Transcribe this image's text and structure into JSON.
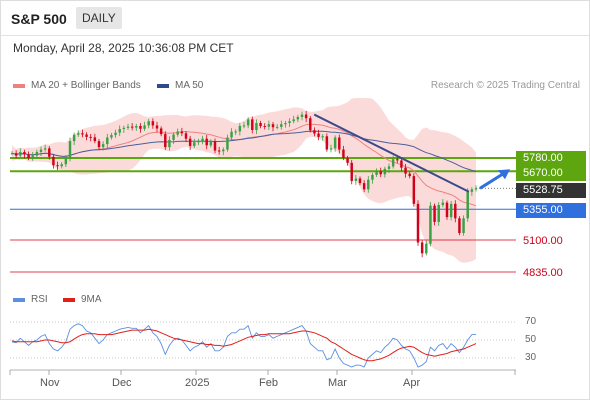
{
  "header": {
    "symbol": "S&P 500",
    "timeframe": "DAILY",
    "datetime": "Monday, April 28, 2025 10:36:08 PM CET",
    "credit": "Research © 2025 Trading Central"
  },
  "legend_main": [
    {
      "label": "MA 20 + Bollinger Bands",
      "color": "#f08080"
    },
    {
      "label": "MA 50",
      "color": "#2c4a8c"
    }
  ],
  "legend_rsi": [
    {
      "label": "RSI",
      "color": "#5b8fe0"
    },
    {
      "label": "9MA",
      "color": "#e0201b"
    }
  ],
  "levels": {
    "r2": {
      "price": 5780.0,
      "text": "5780.00",
      "color": "#5ea60f",
      "style": "filled"
    },
    "r1": {
      "price": 5670.0,
      "text": "5670.00",
      "color": "#5ea60f",
      "style": "filled"
    },
    "last": {
      "price": 5528.75,
      "text": "5528.75",
      "color": "#333333",
      "style": "filled"
    },
    "pivot": {
      "price": 5355.0,
      "text": "5355.00",
      "color": "#2f6fde",
      "style": "filled"
    },
    "s1": {
      "price": 5100.0,
      "text": "5100.00",
      "color": "#d0021b",
      "style": "plain"
    },
    "s2": {
      "price": 4835.0,
      "text": "4835.00",
      "color": "#d0021b",
      "style": "plain"
    }
  },
  "rsi_ticks": [
    "70",
    "50",
    "30"
  ],
  "months": [
    "Nov",
    "Dec",
    "2025",
    "Feb",
    "Mar",
    "Apr"
  ],
  "chart_data": [
    {
      "type": "candlestick",
      "title": "S&P 500",
      "timeframe": "daily",
      "x_range": [
        "2024-10-15",
        "2025-04-28"
      ],
      "y_range_approx": [
        4800,
        6150
      ],
      "last_price": 5528.75,
      "horizontal_levels": [
        5780.0,
        5670.0,
        5528.75,
        5355.0,
        5100.0,
        4835.0
      ],
      "trendline": {
        "from": [
          "2025-02-19",
          6140
        ],
        "to": [
          "2025-04-25",
          5500
        ]
      },
      "target_arrow": {
        "from": [
          "2025-04-28",
          5528.75
        ],
        "to": [
          "2025-05-05",
          5720
        ]
      },
      "indicators": [
        "MA 20 + Bollinger Bands",
        "MA 50"
      ],
      "closes_approx": [
        5820,
        5800,
        5830,
        5810,
        5780,
        5800,
        5830,
        5850,
        5860,
        5790,
        5720,
        5712,
        5728,
        5780,
        5920,
        5973,
        5985,
        5975,
        5955,
        5951,
        5920,
        5870,
        5895,
        5950,
        5970,
        5990,
        6020,
        6030,
        6040,
        6032,
        6045,
        6022,
        6050,
        6085,
        6050,
        6025,
        5978,
        5870,
        5930,
        5974,
        6000,
        5985,
        5940,
        5880,
        5910,
        5922,
        5940,
        5885,
        5918,
        5842,
        5836,
        5850,
        5950,
        5998,
        6000,
        6045,
        6050,
        6100,
        6012,
        6070,
        6045,
        6040,
        6060,
        6035,
        6038,
        6060,
        6070,
        6085,
        6100,
        6120,
        6140,
        6110,
        6010,
        5983,
        5955,
        5960,
        5850,
        5860,
        5950,
        5850,
        5780,
        5740,
        5590,
        5610,
        5572,
        5520,
        5600,
        5640,
        5670,
        5645,
        5690,
        5710,
        5770,
        5760,
        5700,
        5650,
        5630,
        5400,
        5080,
        4990,
        5070,
        5385,
        5250,
        5390,
        5410,
        5290,
        5400,
        5280,
        5158,
        5280,
        5500,
        5520,
        5528.75
      ]
    },
    {
      "type": "line",
      "title": "RSI",
      "y_range": [
        10,
        80
      ],
      "reference_lines": [
        70,
        50,
        30
      ],
      "series": [
        {
          "name": "RSI",
          "values_approx": [
            48,
            47,
            52,
            48,
            44,
            48,
            50,
            54,
            56,
            46,
            40,
            38,
            42,
            48,
            62,
            66,
            68,
            66,
            60,
            58,
            52,
            46,
            50,
            56,
            58,
            60,
            62,
            63,
            64,
            63,
            63,
            58,
            62,
            66,
            58,
            54,
            46,
            34,
            44,
            50,
            52,
            50,
            44,
            38,
            42,
            44,
            48,
            42,
            46,
            38,
            38,
            42,
            54,
            58,
            58,
            62,
            62,
            66,
            52,
            58,
            54,
            54,
            56,
            52,
            54,
            56,
            58,
            60,
            62,
            64,
            66,
            60,
            46,
            42,
            38,
            38,
            28,
            30,
            40,
            30,
            24,
            22,
            20,
            22,
            22,
            20,
            30,
            34,
            38,
            36,
            42,
            46,
            52,
            50,
            44,
            40,
            38,
            30,
            20,
            22,
            26,
            42,
            38,
            44,
            46,
            40,
            46,
            42,
            36,
            42,
            50,
            56,
            56
          ]
        },
        {
          "name": "9MA",
          "values_approx": [
            49,
            48,
            48,
            48,
            48,
            48,
            48,
            49,
            50,
            50,
            49,
            48,
            47,
            47,
            48,
            51,
            54,
            56,
            57,
            57,
            57,
            56,
            56,
            56,
            56,
            57,
            58,
            59,
            60,
            61,
            61,
            61,
            61,
            62,
            61,
            60,
            58,
            56,
            54,
            52,
            51,
            50,
            49,
            48,
            47,
            46,
            46,
            45,
            45,
            44,
            44,
            43,
            44,
            45,
            47,
            49,
            51,
            53,
            54,
            55,
            56,
            56,
            57,
            57,
            57,
            57,
            57,
            57,
            58,
            59,
            60,
            60,
            59,
            58,
            56,
            54,
            52,
            48,
            46,
            43,
            40,
            37,
            34,
            32,
            30,
            28,
            27,
            27,
            28,
            29,
            31,
            33,
            36,
            39,
            41,
            42,
            43,
            42,
            39,
            36,
            34,
            33,
            32,
            33,
            34,
            35,
            37,
            38,
            39,
            40,
            42,
            44,
            46
          ]
        }
      ]
    }
  ]
}
